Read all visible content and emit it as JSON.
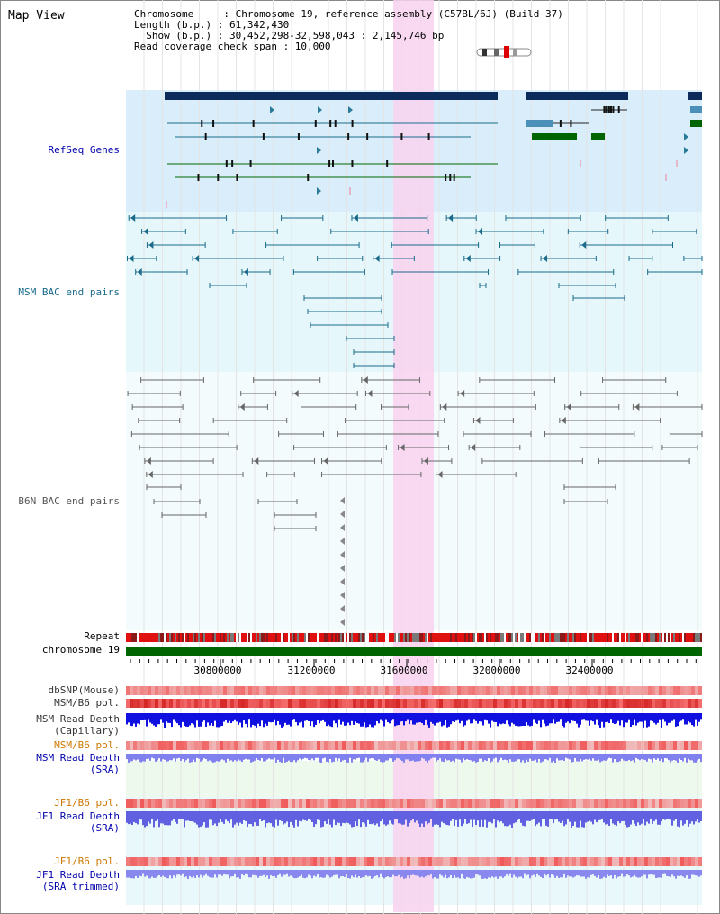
{
  "title": "Map View",
  "info": {
    "line1": "Chromosome     : Chromosome 19, reference assembly (C57BL/6J) (Build 37)",
    "line2": "Length (b.p.) : 61,342,430",
    "line3": "  Show (b.p.) : 30,452,298-32,598,043 : 2,145,746 bp",
    "line4": "Read coverage check span : 10,000"
  },
  "tracks": {
    "refseq": "RefSeq Genes",
    "msm_bac": "MSM BAC end pairs",
    "b6n_bac": "B6N BAC end pairs",
    "repeat": "Repeat",
    "chromosome": "chromosome 19",
    "dbsnp": "dbSNP(Mouse)",
    "msm_b6_pol": "MSM/B6 pol.",
    "msm_depth_cap_1": "MSM Read Depth",
    "msm_depth_cap_2": "(Capillary)",
    "msm_b6_pol_sra": "MSM/B6 pol.",
    "msm_depth_sra_1": "MSM Read Depth",
    "msm_depth_sra_2": "(SRA)",
    "jf1_pol": "JF1/B6 pol.",
    "jf1_depth_1": "JF1 Read Depth",
    "jf1_depth_2": "(SRA)",
    "jf1_pol_trim": "JF1/B6 pol.",
    "jf1_trim_1": "JF1 Read Depth",
    "jf1_trim_2": "(SRA trimmed)"
  },
  "axis": {
    "ticks": [
      "30800000",
      "31200000",
      "31600000",
      "32000000",
      "32400000"
    ]
  },
  "colors": {
    "refseq_bg": "#d9eefa",
    "bac_bg": "#e6f7fb",
    "highlight": "#f8d2ee",
    "gene_dark": "#0c2a5a",
    "gene_green": "#006400",
    "msm_bac": "#1a6b8a",
    "b6n_bac": "#666666",
    "chromosome_bar": "#006400",
    "label_blue": "#0000aa",
    "label_orange": "#cc7700"
  }
}
